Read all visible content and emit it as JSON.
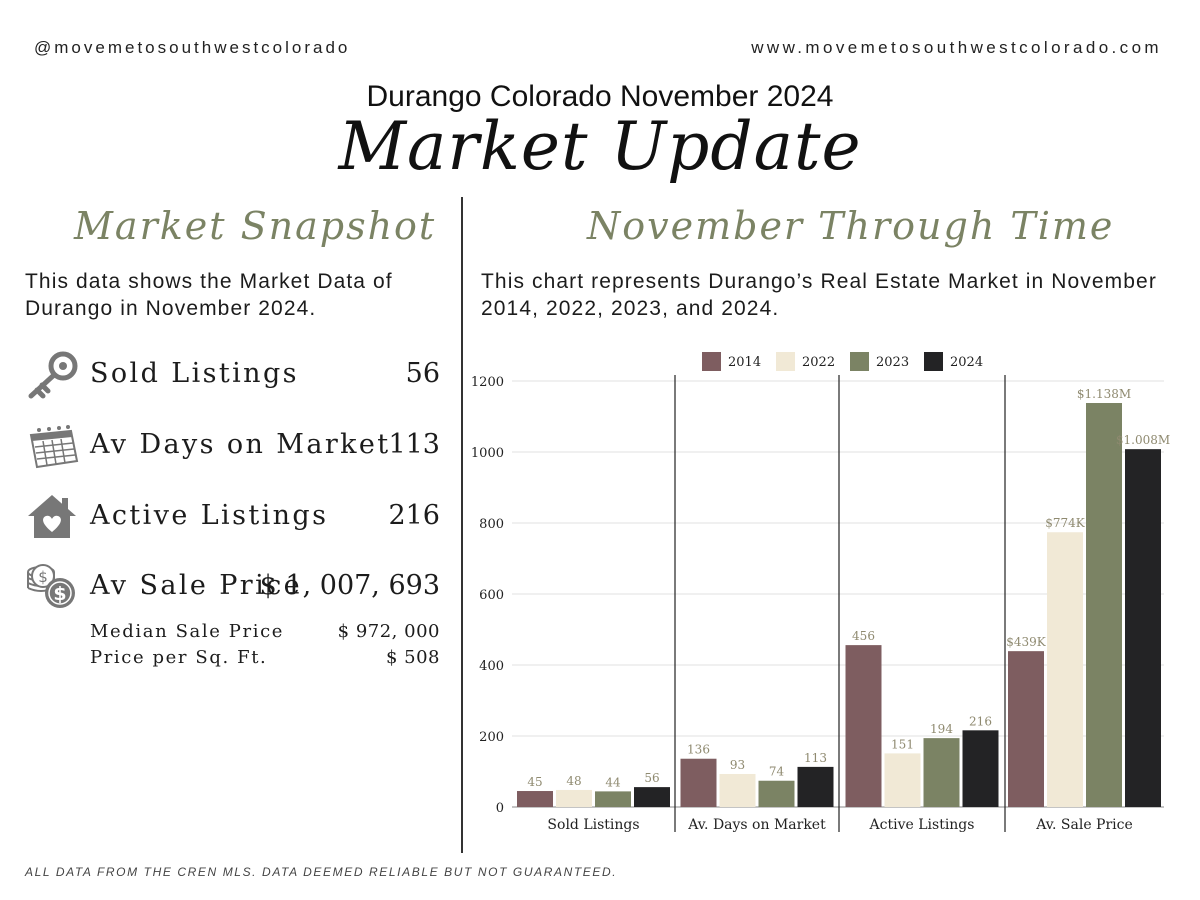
{
  "header": {
    "handle": "@movemetosouthwestcolorado",
    "website": "www.movemetosouthwestcolorado.com",
    "subtitle": "Durango Colorado November 2024",
    "title": "Market Update"
  },
  "snapshot": {
    "title": "Market Snapshot",
    "description": "This data shows the Market Data of Durango in November 2024.",
    "stats": [
      {
        "icon": "key-icon",
        "label": "Sold Listings",
        "value": "56"
      },
      {
        "icon": "calendar-icon",
        "label": "Av Days on Market",
        "value": "113"
      },
      {
        "icon": "house-heart-icon",
        "label": "Active Listings",
        "value": "216"
      },
      {
        "icon": "coins-icon",
        "label": "Av Sale Price",
        "value": "$ 1, 007, 693"
      }
    ],
    "sub_stats": [
      {
        "label": "Median Sale Price",
        "value": "$ 972, 000"
      },
      {
        "label": "Price per Sq. Ft.",
        "value": "$ 508"
      }
    ]
  },
  "through_time": {
    "title": "November Through Time",
    "description": "This chart represents Durango’s Real Estate Market in November  2014, 2022, 2023, and 2024."
  },
  "footnote": "ALL DATA FROM THE CREN MLS. DATA DEEMED RELIABLE BUT NOT GUARANTEED.",
  "colors": {
    "accent_green": "#7b8364",
    "s2014": "#7e5d60",
    "s2022": "#f1e9d6",
    "s2023": "#7b8364",
    "s2024": "#232325"
  },
  "chart_data": {
    "type": "bar",
    "categories": [
      "Sold Listings",
      "Av. Days on Market",
      "Active Listings",
      "Av. Sale Price"
    ],
    "series": [
      {
        "name": "2014",
        "values": [
          45,
          136,
          456,
          439
        ],
        "labels": [
          "45",
          "136",
          "456",
          "$439K"
        ]
      },
      {
        "name": "2022",
        "values": [
          48,
          93,
          151,
          774
        ],
        "labels": [
          "48",
          "93",
          "151",
          "$774K"
        ]
      },
      {
        "name": "2023",
        "values": [
          44,
          74,
          194,
          1138
        ],
        "labels": [
          "44",
          "74",
          "194",
          "$1.138M"
        ]
      },
      {
        "name": "2024",
        "values": [
          56,
          113,
          216,
          1008
        ],
        "labels": [
          "56",
          "113",
          "216",
          "$1.008M"
        ]
      }
    ],
    "yticks": [
      0,
      200,
      400,
      600,
      800,
      1000,
      1200
    ],
    "ylim": [
      0,
      1200
    ],
    "legend": "top-center",
    "grid": true
  }
}
